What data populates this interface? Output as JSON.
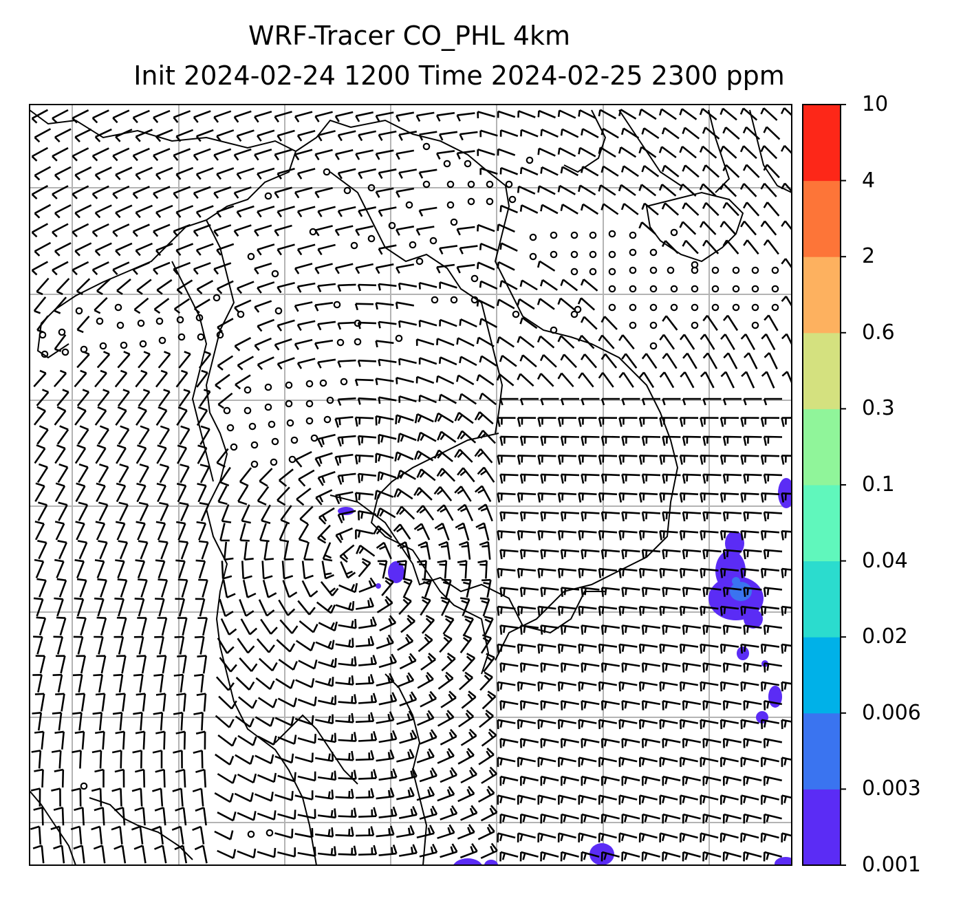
{
  "title": {
    "line1": "WRF-Tracer CO_PHL 4km",
    "line2": "Init 2024-02-24 1200 Time 2024-02-25 2300 ppm"
  },
  "colorbar": {
    "ticks": [
      "0.001",
      "0.003",
      "0.006",
      "0.02",
      "0.04",
      "0.1",
      "0.3",
      "0.6",
      "2",
      "4",
      "10"
    ],
    "colors": [
      "#5b2cf5",
      "#3a74f0",
      "#00b1e8",
      "#2bdcce",
      "#60f7bc",
      "#90f59a",
      "#d4e17f",
      "#fdb15f",
      "#fd7538",
      "#fd2718"
    ]
  },
  "map": {
    "grid": "on",
    "overlay": "wind barbs",
    "coast_color": "#000000",
    "grid_color": "#b3b3b3"
  }
}
